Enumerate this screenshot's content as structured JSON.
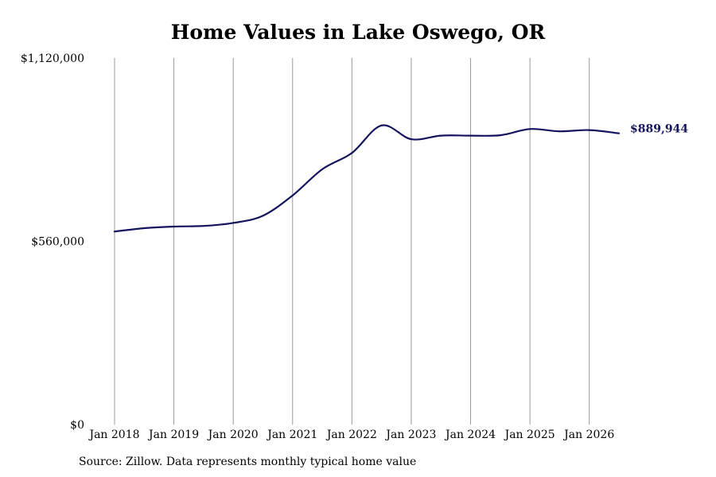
{
  "chart_data": {
    "type": "line",
    "title": "Home Values in Lake Oswego, OR",
    "xlabel": "",
    "ylabel": "",
    "x_ticks": [
      "Jan 2018",
      "Jan 2019",
      "Jan 2020",
      "Jan 2021",
      "Jan 2022",
      "Jan 2023",
      "Jan 2024",
      "Jan 2025",
      "Jan 2026"
    ],
    "y_ticks": [
      {
        "value": 0,
        "label": "$0"
      },
      {
        "value": 560000,
        "label": "$560,000"
      },
      {
        "value": 1120000,
        "label": "$1,120,000"
      }
    ],
    "ylim": [
      0,
      1120000
    ],
    "xlim": [
      "Jan 2018",
      "Jul 2026"
    ],
    "grid": "vertical",
    "series": [
      {
        "color": "#14145e",
        "points": [
          {
            "x": "Jan 2018",
            "y": 590000
          },
          {
            "x": "Jul 2018",
            "y": 600000
          },
          {
            "x": "Jan 2019",
            "y": 605000
          },
          {
            "x": "Jul 2019",
            "y": 607000
          },
          {
            "x": "Jan 2020",
            "y": 616000
          },
          {
            "x": "Jul 2020",
            "y": 638000
          },
          {
            "x": "Jan 2021",
            "y": 700000
          },
          {
            "x": "Jul 2021",
            "y": 780000
          },
          {
            "x": "Jan 2022",
            "y": 830000
          },
          {
            "x": "Jul 2022",
            "y": 914000
          },
          {
            "x": "Jan 2023",
            "y": 872000
          },
          {
            "x": "Jul 2023",
            "y": 883000
          },
          {
            "x": "Jan 2024",
            "y": 883000
          },
          {
            "x": "Jul 2024",
            "y": 884000
          },
          {
            "x": "Jan 2025",
            "y": 903000
          },
          {
            "x": "Jul 2025",
            "y": 896000
          },
          {
            "x": "Jan 2026",
            "y": 900000
          },
          {
            "x": "Jul 2026",
            "y": 889944
          }
        ]
      }
    ],
    "end_label": "$889,944",
    "source": "Source: Zillow. Data represents monthly typical home value"
  }
}
